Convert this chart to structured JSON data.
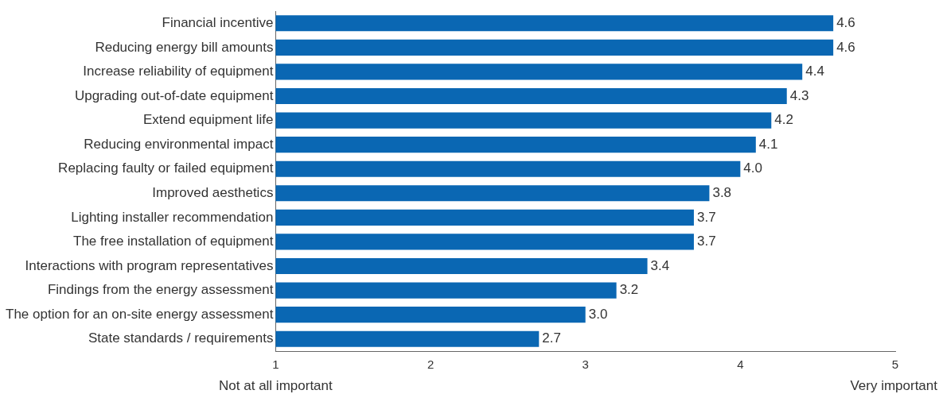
{
  "chart_data": {
    "type": "bar",
    "orientation": "horizontal",
    "categories": [
      "Financial incentive",
      "Reducing energy bill amounts",
      "Increase reliability of equipment",
      "Upgrading out-of-date equipment",
      "Extend equipment life",
      "Reducing environmental impact",
      "Replacing faulty or failed equipment",
      "Improved aesthetics",
      "Lighting installer recommendation",
      "The free installation of equipment",
      "Interactions with program representatives",
      "Findings from the energy assessment",
      "The option for an on-site energy assessment",
      "State standards / requirements"
    ],
    "values": [
      4.6,
      4.6,
      4.4,
      4.3,
      4.2,
      4.1,
      4.0,
      3.8,
      3.7,
      3.7,
      3.4,
      3.2,
      3.0,
      2.7
    ],
    "value_labels": [
      "4.6",
      "4.6",
      "4.4",
      "4.3",
      "4.2",
      "4.1",
      "4.0",
      "3.8",
      "3.7",
      "3.7",
      "3.4",
      "3.2",
      "3.0",
      "2.7"
    ],
    "color": "#0a67b3",
    "xlim": [
      1,
      5
    ],
    "xticks": [
      1,
      2,
      3,
      4,
      5
    ],
    "grid": false,
    "legend": false,
    "annotations": [
      "Not at all important",
      "Very important"
    ]
  }
}
